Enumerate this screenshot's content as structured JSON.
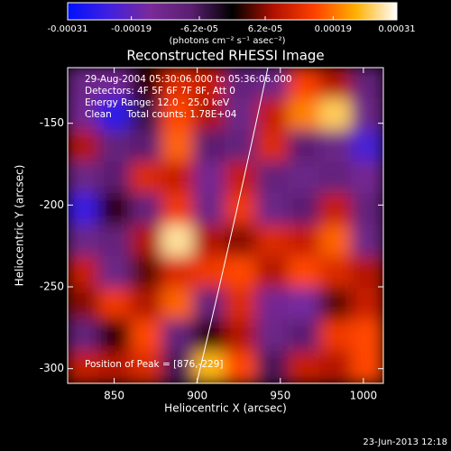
{
  "chart_data": {
    "type": "heatmap",
    "title": "Reconstructed RHESSI Image",
    "xlabel": "Heliocentric X (arcsec)",
    "ylabel": "Heliocentric Y (arcsec)",
    "colorbar_label": "(photons cm⁻² s⁻¹ asec⁻²)",
    "annotations": [
      "29-Aug-2004 05:30:06.000 to 05:36:06.000",
      "Detectors: 4F 5F 6F 7F 8F, Att 0",
      "Energy Range: 12.0 - 25.0 keV",
      "Clean     Total counts: 1.78E+04"
    ],
    "peak_label": "Position of Peak = [876,-229]",
    "date_stamp": "23-Jun-2013 12:18",
    "xlim": [
      822,
      1012
    ],
    "ylim": [
      -309,
      -116
    ],
    "xticks": [
      850,
      900,
      950,
      1000
    ],
    "yticks": [
      -150,
      -200,
      -250,
      -300
    ],
    "clim": [
      -0.00031,
      0.00031
    ],
    "cticks": [
      -0.00031,
      -0.00019,
      {
        "value": -6.2e-05,
        "label": "-6.2e-05"
      },
      {
        "value": 6.2e-05,
        "label": "6.2e-05"
      },
      0.00019,
      0.00031
    ],
    "colormap": [
      "#0010ff",
      "#4020e0",
      "#7a2a9a",
      "#5a1f70",
      "#000000",
      "#b01000",
      "#ff4000",
      "#ffb000",
      "#ffffff"
    ],
    "z": [
      [
        -0.00012,
        -0.00014,
        2e-05,
        0.00012,
        0.0001,
        -0.0001,
        -0.00012,
        0.00015,
        8e-05,
        -0.0001
      ],
      [
        -0.00014,
        -0.00026,
        -5e-05,
        0.00016,
        8e-05,
        -0.00012,
        0.0001,
        0.0002,
        0.00026,
        -0.00012
      ],
      [
        8e-05,
        -0.0001,
        -8e-05,
        0.00018,
        -8e-05,
        -0.0001,
        0.00012,
        -8e-05,
        -0.00012,
        -0.00022
      ],
      [
        -0.00012,
        -8e-05,
        0.00012,
        0.0001,
        -0.00014,
        0.0001,
        -0.0001,
        -0.00012,
        -0.0001,
        -0.00014
      ],
      [
        -0.00024,
        2e-05,
        -0.0001,
        0.00014,
        -0.00012,
        0.00014,
        -0.00012,
        -8e-05,
        0.0001,
        -0.0001
      ],
      [
        -0.00012,
        -0.0001,
        8e-05,
        0.00028,
        8e-05,
        6e-05,
        0.00012,
        0.0001,
        0.00018,
        -0.00012
      ],
      [
        0.0001,
        -0.00012,
        4e-05,
        0.00012,
        0.00014,
        0.00016,
        8e-05,
        0.00016,
        0.00012,
        8e-05
      ],
      [
        6e-05,
        0.00014,
        8e-05,
        0.00018,
        -0.0001,
        0.00012,
        -0.00014,
        -0.00016,
        4e-05,
        0.0001
      ],
      [
        -0.0001,
        2e-05,
        0.00016,
        -0.0001,
        2e-05,
        8e-05,
        -0.00012,
        -8e-05,
        0.00014,
        0.00016
      ],
      [
        0.0001,
        8e-05,
        0.00012,
        -6e-05,
        0.00024,
        0.00016,
        -6e-05,
        0.0001,
        8e-05,
        0.00016
      ]
    ]
  }
}
